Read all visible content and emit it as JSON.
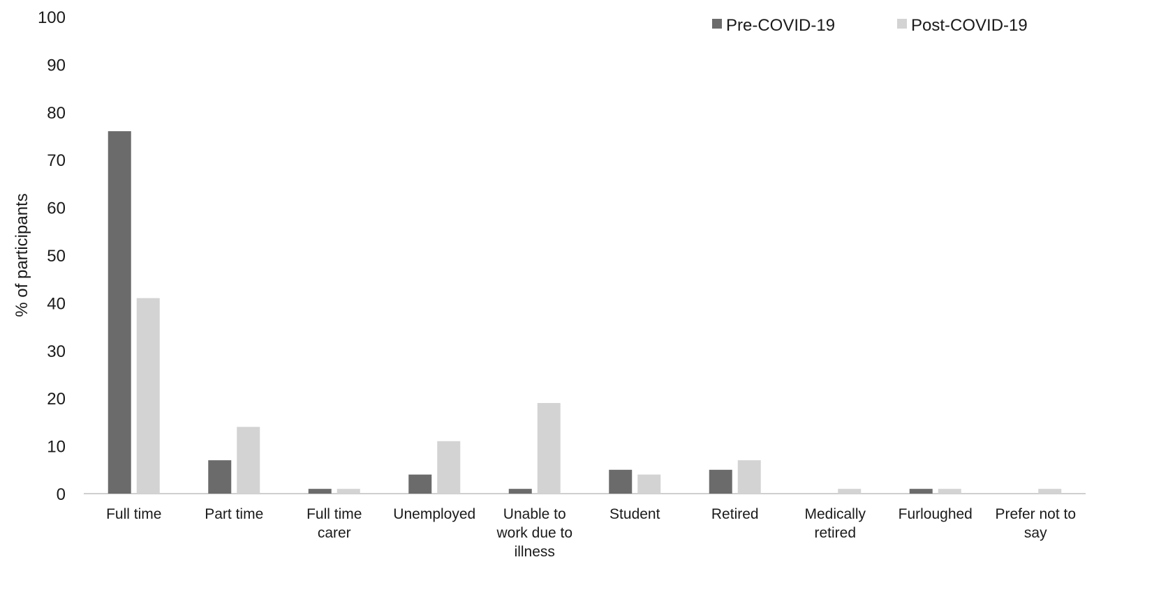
{
  "chart_data": {
    "type": "bar",
    "title": "",
    "xlabel": "",
    "ylabel": "% of participants",
    "ylim": [
      0,
      100
    ],
    "yticks": [
      0,
      10,
      20,
      30,
      40,
      50,
      60,
      70,
      80,
      90,
      100
    ],
    "grid": false,
    "legend_position": "top-right",
    "categories": [
      [
        "Full time"
      ],
      [
        "Part time"
      ],
      [
        "Full time",
        "carer"
      ],
      [
        "Unemployed"
      ],
      [
        "Unable to",
        "work due to",
        "illness"
      ],
      [
        "Student"
      ],
      [
        "Retired"
      ],
      [
        "Medically",
        "retired"
      ],
      [
        "Furloughed"
      ],
      [
        "Prefer not to",
        "say"
      ]
    ],
    "series": [
      {
        "name": "Pre-COVID-19",
        "color": "#6b6b6b",
        "values": [
          76,
          7,
          1,
          4,
          1,
          5,
          5,
          0,
          1,
          0
        ]
      },
      {
        "name": "Post-COVID-19",
        "color": "#d3d3d3",
        "values": [
          41,
          14,
          1,
          11,
          19,
          4,
          7,
          1,
          1,
          1
        ]
      }
    ]
  }
}
